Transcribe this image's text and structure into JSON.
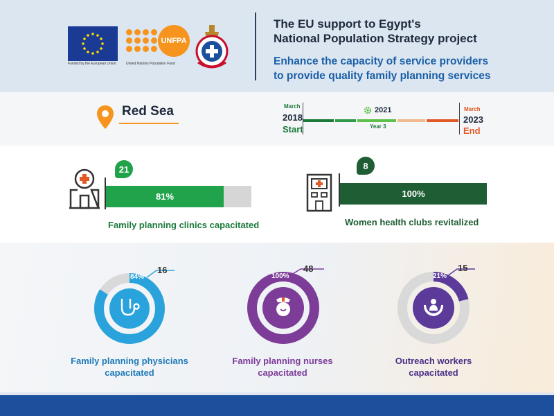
{
  "header": {
    "eu_caption": "Funded by the European Union",
    "unfpa_caption": "United Nations Population Fund",
    "unfpa_badge": "UNFPA",
    "title_line1": "The EU support to Egypt's",
    "title_line2": "National Population Strategy project",
    "subtitle_line1": "Enhance the capacity of service providers",
    "subtitle_line2": "to provide quality family planning services"
  },
  "location": {
    "region": "Red Sea"
  },
  "timeline": {
    "start_month": "March",
    "start_year": "2018",
    "start_label": "Start",
    "current_year": "2021",
    "current_label": "Year 3",
    "end_month": "March",
    "end_year": "2023",
    "end_label": "End",
    "colors": {
      "done": "#1b7a3a",
      "current": "#5cc04a",
      "remaining": "#e05a28"
    }
  },
  "bars": [
    {
      "count": "21",
      "percent_label": "81%",
      "percent": 81,
      "label": "Family planning clinics capacitated",
      "icon": "hospital-icon",
      "color": "#20a34a"
    },
    {
      "count": "8",
      "percent_label": "100%",
      "percent": 100,
      "label": "Women health clubs revitalized",
      "icon": "building-icon",
      "color": "#1f5e35"
    }
  ],
  "donuts": [
    {
      "percent_label": "84%",
      "percent": 84,
      "count": "16",
      "label_line1": "Family planning physicians",
      "label_line2": "capacitated",
      "icon": "stethoscope-icon",
      "color": "#2aa3dc",
      "label_color": "#1e7bb8"
    },
    {
      "percent_label": "100%",
      "percent": 100,
      "count": "48",
      "label_line1": "Family planning nurses",
      "label_line2": "capacitated",
      "icon": "nurse-icon",
      "color": "#7d3c98",
      "label_color": "#7d3c98"
    },
    {
      "percent_label": "21%",
      "percent": 21,
      "count": "15",
      "label_line1": "Outreach workers",
      "label_line2": "capacitated",
      "icon": "hands-people-icon",
      "color": "#5b3a9a",
      "label_color": "#4a2f86"
    }
  ]
}
